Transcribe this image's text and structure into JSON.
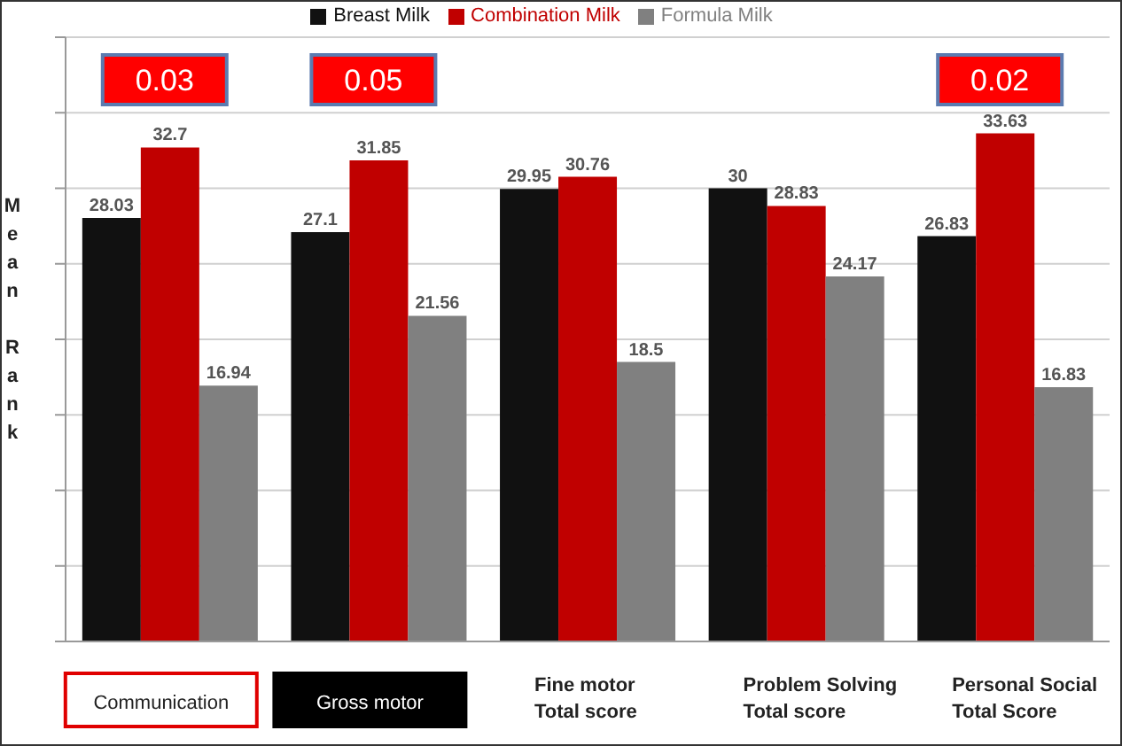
{
  "chart_data": {
    "type": "bar",
    "categories": [
      "Communication",
      "Gross motor",
      "Fine motor\nTotal score",
      "Problem Solving\nTotal score",
      "Personal Social\nTotal Score"
    ],
    "series": [
      {
        "name": "Breast Milk",
        "color": "#111111",
        "values": [
          28.03,
          27.1,
          29.95,
          30,
          26.83
        ]
      },
      {
        "name": "Combination Milk",
        "color": "#c00000",
        "values": [
          32.7,
          31.85,
          30.76,
          28.83,
          33.63
        ]
      },
      {
        "name": "Formula Milk",
        "color": "#808080",
        "values": [
          16.94,
          21.56,
          18.5,
          24.17,
          16.83
        ]
      }
    ],
    "ylabel": "Mean Rank",
    "ylim": [
      0,
      40
    ],
    "yticks": [
      {
        "value": 0,
        "label": null
      },
      {
        "value": 5,
        "label": null
      },
      {
        "value": 10,
        "label": null
      },
      {
        "value": 15,
        "label": null
      },
      {
        "value": 20,
        "label": null
      },
      {
        "value": 25,
        "label": null
      },
      {
        "value": 30,
        "label": null
      },
      {
        "value": 35,
        "label": null
      },
      {
        "value": 40,
        "label": null
      }
    ],
    "grid": "y",
    "legend": "top",
    "data_labels": true,
    "annotations": [
      "0.03",
      "0.05",
      "0.02"
    ]
  }
}
